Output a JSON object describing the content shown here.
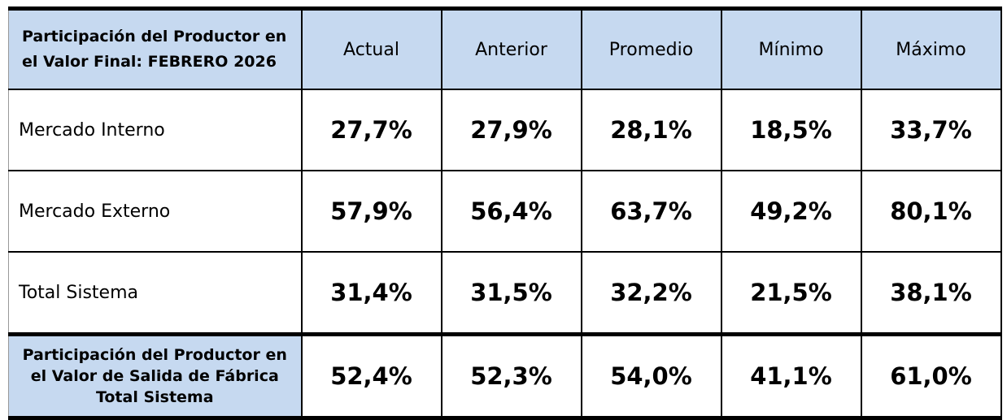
{
  "header": {
    "title": "Participación del Productor en el Valor Final:  FEBRERO  2026",
    "columns": [
      "Actual",
      "Anterior",
      "Promedio",
      "Mínimo",
      "Máximo"
    ]
  },
  "rows": [
    {
      "label": "Mercado Interno",
      "values": [
        "27,7%",
        "27,9%",
        "28,1%",
        "18,5%",
        "33,7%"
      ]
    },
    {
      "label": "Mercado Externo",
      "values": [
        "57,9%",
        "56,4%",
        "63,7%",
        "49,2%",
        "80,1%"
      ]
    },
    {
      "label": "Total Sistema",
      "values": [
        "31,4%",
        "31,5%",
        "32,2%",
        "21,5%",
        "38,1%"
      ]
    },
    {
      "label": "Participación del Productor en el Valor de Salida de Fábrica Total Sistema",
      "values": [
        "52,4%",
        "52,3%",
        "54,0%",
        "41,1%",
        "61,0%"
      ]
    }
  ]
}
